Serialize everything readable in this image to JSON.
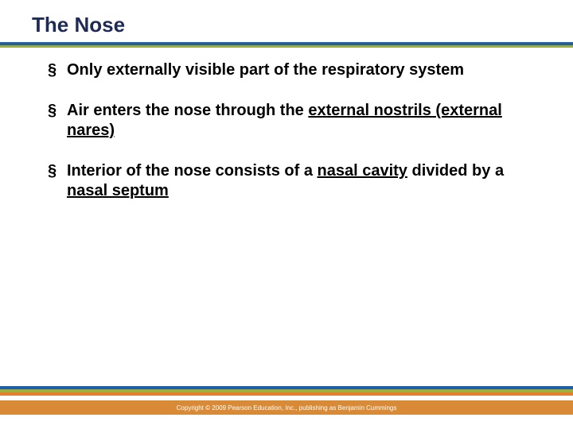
{
  "title": "The Nose",
  "title_color": "#1f2b57",
  "rule_colors": {
    "blue": "#1f5fa8",
    "olive": "#9fae3a",
    "orange1": "#e37f2e",
    "orange2": "#d98a36"
  },
  "bullet_color": "#000000",
  "text_color": "#000000",
  "bullets": [
    {
      "pre": "Only externally visible part of the respiratory system"
    },
    {
      "pre": "Air enters the nose through the ",
      "u1": "external nostrils (external nares)"
    },
    {
      "pre": "Interior of the nose consists of a ",
      "u1": "nasal cavity",
      "mid": " divided by a ",
      "u2": "nasal septum"
    }
  ],
  "bottom_bar_colors": [
    "#1f5fa8",
    "#9fae3a",
    "#e37f2e"
  ],
  "copyright_bg": "#d98a36",
  "copyright": "Copyright © 2009 Pearson Education, Inc., publishing as Benjamin Cummings"
}
